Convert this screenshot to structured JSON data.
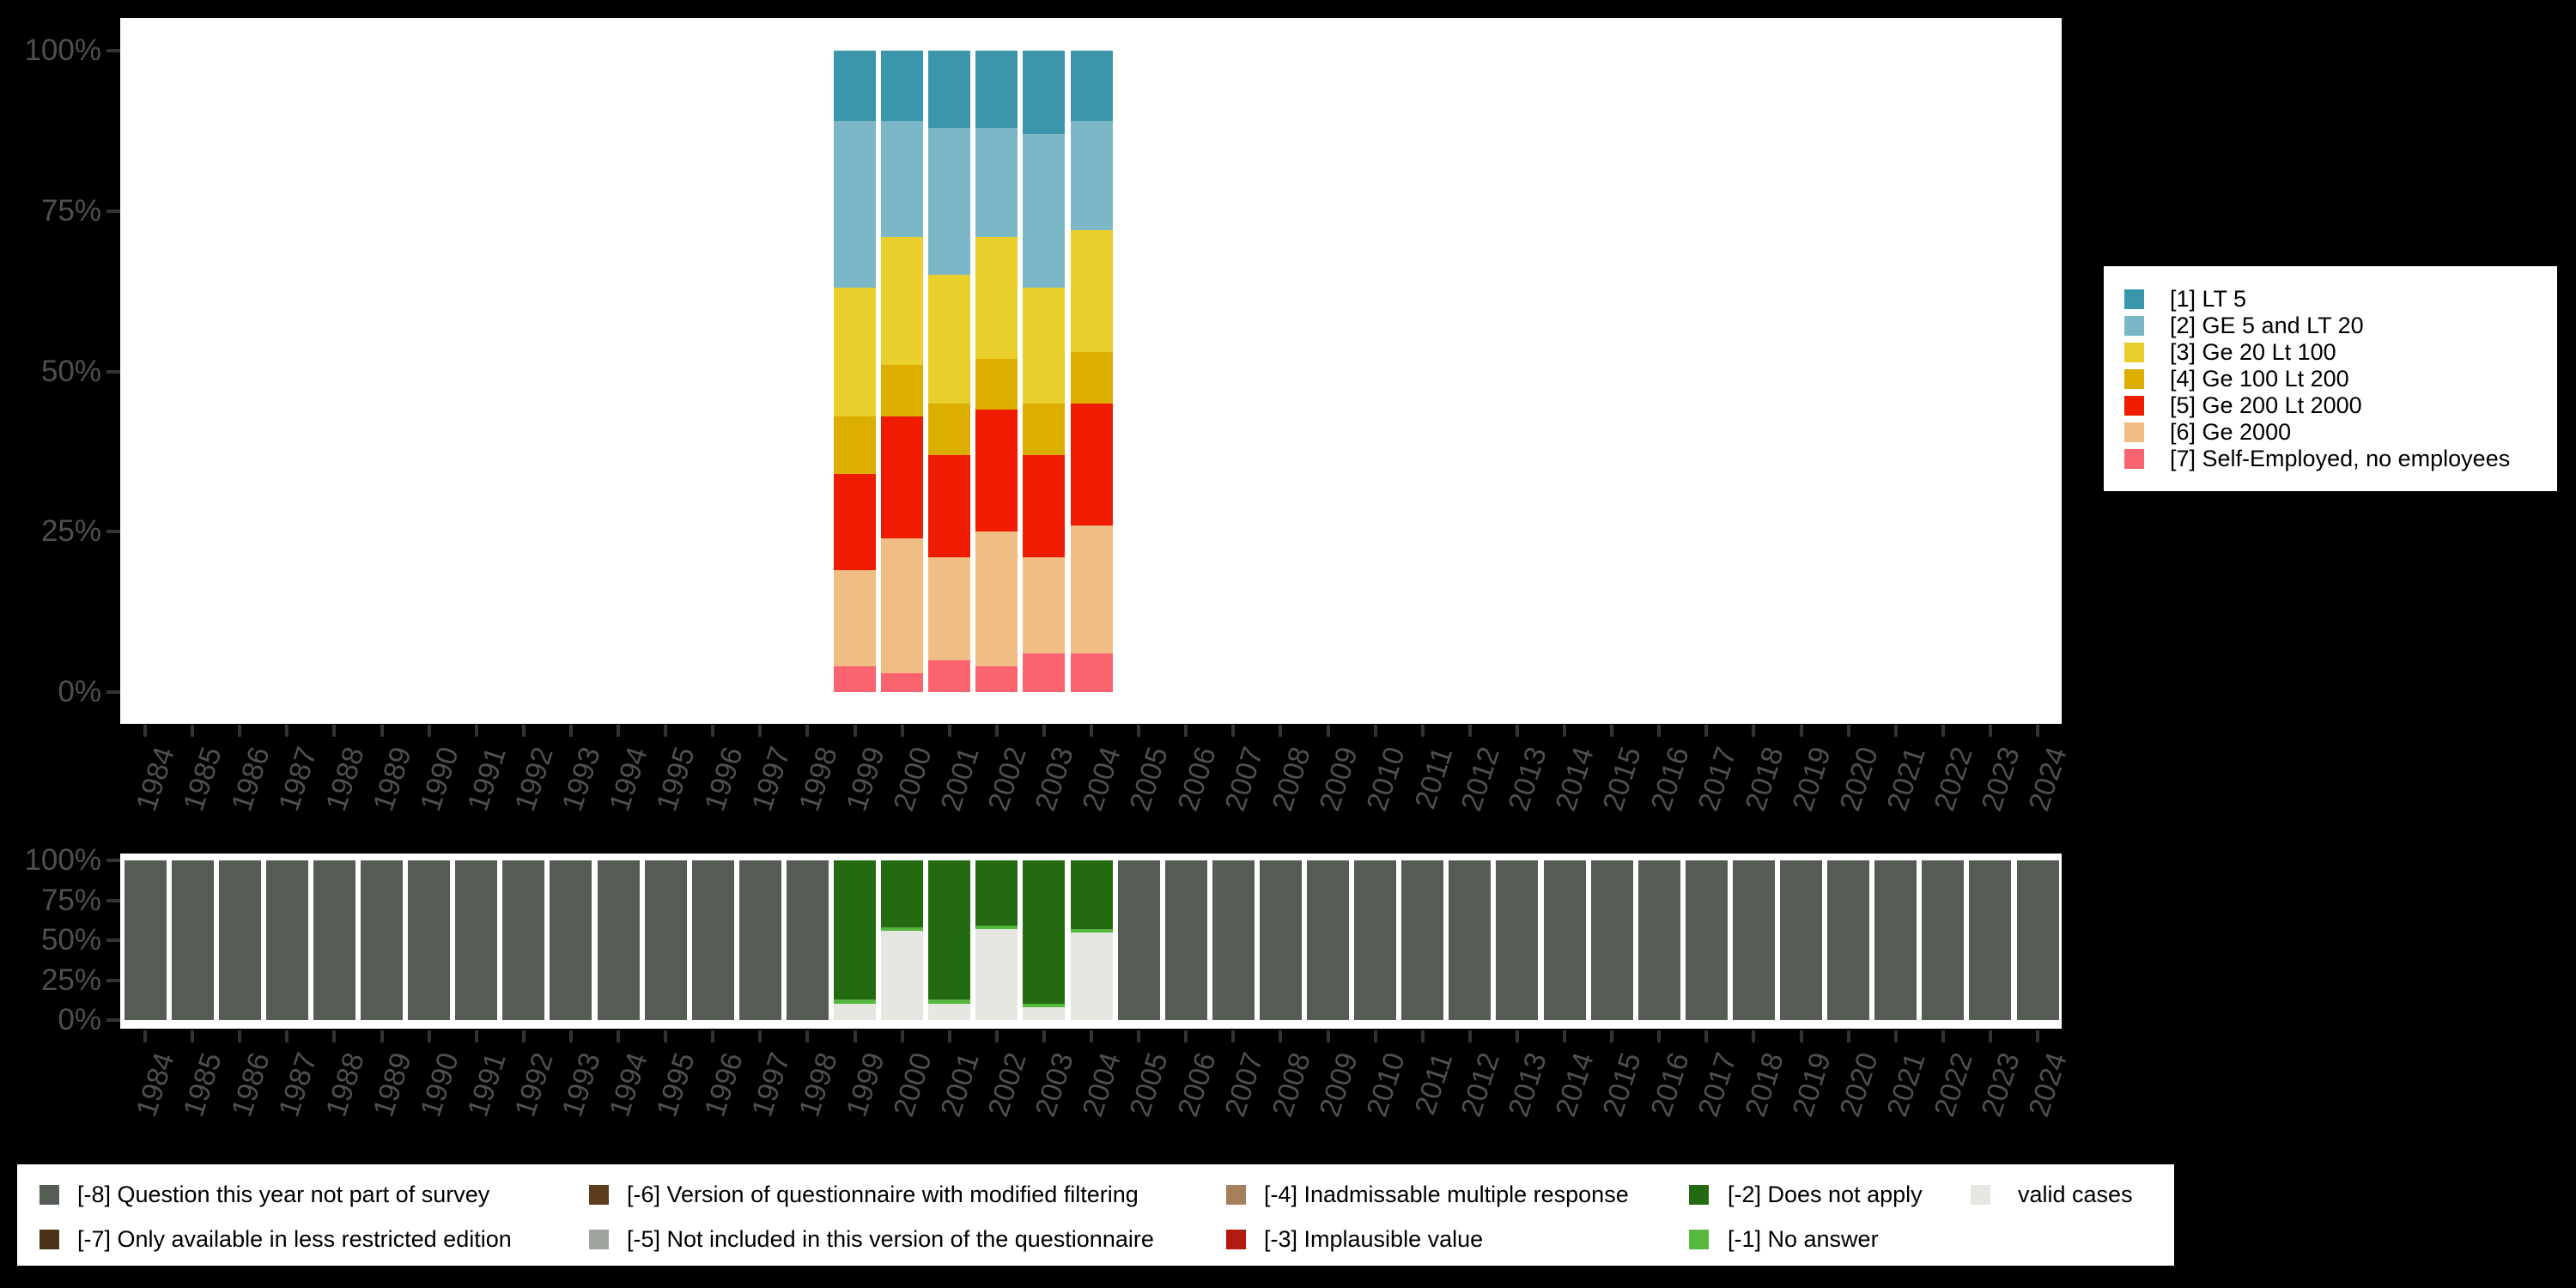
{
  "page": {
    "background": "#000000",
    "plot_background": "#ffffff",
    "axis_text_color": "#4f4f4f",
    "axis_tick_color": "#333333"
  },
  "chart_data": [
    {
      "id": "company-size-distribution",
      "type": "bar",
      "stacked": true,
      "orientation": "vertical",
      "grid": false,
      "title": "",
      "xlabel": "",
      "ylabel": "",
      "y_range": [
        0,
        100
      ],
      "y_ticks": [
        "0%",
        "25%",
        "50%",
        "75%",
        "100%"
      ],
      "legend_position": "right",
      "x": [
        "1984",
        "1985",
        "1986",
        "1987",
        "1988",
        "1989",
        "1990",
        "1991",
        "1992",
        "1993",
        "1994",
        "1995",
        "1996",
        "1997",
        "1998",
        "1999",
        "2000",
        "2001",
        "2002",
        "2003",
        "2004",
        "2005",
        "2006",
        "2007",
        "2008",
        "2009",
        "2010",
        "2011",
        "2012",
        "2013",
        "2014",
        "2015",
        "2016",
        "2017",
        "2018",
        "2019",
        "2020",
        "2021",
        "2022",
        "2023",
        "2024"
      ],
      "series": [
        {
          "name": "[1] LT 5",
          "color": "#3b96ac",
          "values": {
            "1999": 11,
            "2000": 11,
            "2001": 12,
            "2002": 12,
            "2003": 13,
            "2004": 11
          }
        },
        {
          "name": "[2] GE 5 and LT 20",
          "color": "#7cb7c8",
          "values": {
            "1999": 26,
            "2000": 18,
            "2001": 23,
            "2002": 17,
            "2003": 24,
            "2004": 17
          }
        },
        {
          "name": "[3] Ge 20 Lt 100",
          "color": "#e9cf2b",
          "values": {
            "1999": 20,
            "2000": 20,
            "2001": 20,
            "2002": 19,
            "2003": 18,
            "2004": 19
          }
        },
        {
          "name": "[4] Ge 100 Lt 200",
          "color": "#dbae00",
          "values": {
            "1999": 9,
            "2000": 8,
            "2001": 8,
            "2002": 8,
            "2003": 8,
            "2004": 8
          }
        },
        {
          "name": "[5] Ge 200 Lt 2000",
          "color": "#ef1c02",
          "values": {
            "1999": 15,
            "2000": 19,
            "2001": 16,
            "2002": 19,
            "2003": 16,
            "2004": 19
          }
        },
        {
          "name": "[6] Ge 2000",
          "color": "#f0bd85",
          "values": {
            "1999": 15,
            "2000": 21,
            "2001": 16,
            "2002": 21,
            "2003": 15,
            "2004": 20
          }
        },
        {
          "name": "[7] Self-Employed, no employees",
          "color": "#fa646e",
          "values": {
            "1999": 4,
            "2000": 3,
            "2001": 5,
            "2002": 4,
            "2003": 6,
            "2004": 6
          }
        }
      ]
    },
    {
      "id": "missing-values-overview",
      "type": "bar",
      "stacked": true,
      "orientation": "vertical",
      "grid": false,
      "title": "",
      "xlabel": "",
      "ylabel": "",
      "y_range": [
        0,
        100
      ],
      "y_ticks": [
        "0%",
        "25%",
        "50%",
        "75%",
        "100%"
      ],
      "legend_position": "bottom",
      "x": [
        "1984",
        "1985",
        "1986",
        "1987",
        "1988",
        "1989",
        "1990",
        "1991",
        "1992",
        "1993",
        "1994",
        "1995",
        "1996",
        "1997",
        "1998",
        "1999",
        "2000",
        "2001",
        "2002",
        "2003",
        "2004",
        "2005",
        "2006",
        "2007",
        "2008",
        "2009",
        "2010",
        "2011",
        "2012",
        "2013",
        "2014",
        "2015",
        "2016",
        "2017",
        "2018",
        "2019",
        "2020",
        "2021",
        "2022",
        "2023",
        "2024"
      ],
      "series": [
        {
          "name": "[-2] Does not apply",
          "color": "#236a10",
          "values": {
            "1999": 87,
            "2000": 42,
            "2001": 87,
            "2002": 41,
            "2003": 90,
            "2004": 43
          }
        },
        {
          "name": "[-1] No answer",
          "color": "#56b83e",
          "values": {
            "1999": 3,
            "2000": 2,
            "2001": 3,
            "2002": 2,
            "2003": 2,
            "2004": 2
          }
        },
        {
          "name": "valid cases",
          "color": "#e4e8e0",
          "values": {
            "1999": 10,
            "2000": 56,
            "2001": 10,
            "2002": 57,
            "2003": 8,
            "2004": 55
          }
        },
        {
          "name": "[-8] Question this year not part of survey",
          "color": "#545c54",
          "values": {
            "1984": 100,
            "1985": 100,
            "1986": 100,
            "1987": 100,
            "1988": 100,
            "1989": 100,
            "1990": 100,
            "1991": 100,
            "1992": 100,
            "1993": 100,
            "1994": 100,
            "1995": 100,
            "1996": 100,
            "1997": 100,
            "1998": 100,
            "2005": 100,
            "2006": 100,
            "2007": 100,
            "2008": 100,
            "2009": 100,
            "2010": 100,
            "2011": 100,
            "2012": 100,
            "2013": 100,
            "2014": 100,
            "2015": 100,
            "2016": 100,
            "2017": 100,
            "2018": 100,
            "2019": 100,
            "2020": 100,
            "2021": 100,
            "2022": 100,
            "2023": 100,
            "2024": 100
          }
        }
      ]
    }
  ],
  "legend_top": {
    "items": [
      {
        "label": "[1] LT 5",
        "color": "#3b96ac"
      },
      {
        "label": "[2] GE 5 and LT 20",
        "color": "#7cb7c8"
      },
      {
        "label": "[3] Ge 20 Lt 100",
        "color": "#e9cf2b"
      },
      {
        "label": "[4] Ge 100 Lt 200",
        "color": "#dbae00"
      },
      {
        "label": "[5] Ge 200 Lt 2000",
        "color": "#ef1c02"
      },
      {
        "label": "[6] Ge 2000",
        "color": "#f0bd85"
      },
      {
        "label": "[7] Self-Employed, no employees",
        "color": "#fa646e"
      }
    ]
  },
  "legend_bottom": {
    "items": [
      {
        "label": "[-8] Question this year not part of survey",
        "color": "#545c54",
        "row": 0,
        "col": 0
      },
      {
        "label": "[-7] Only available in less restricted edition",
        "color": "#4a3117",
        "row": 1,
        "col": 0
      },
      {
        "label": "[-6] Version of questionnaire with modified filtering",
        "color": "#5e3b1c",
        "row": 0,
        "col": 1
      },
      {
        "label": "[-5] Not included in this version of the questionnaire",
        "color": "#9da59d",
        "row": 1,
        "col": 1
      },
      {
        "label": "[-4] Inadmissable multiple response",
        "color": "#a5805a",
        "row": 0,
        "col": 2
      },
      {
        "label": "[-3] Implausible value",
        "color": "#b21b10",
        "row": 1,
        "col": 2
      },
      {
        "label": "[-2] Does not apply",
        "color": "#236a10",
        "row": 0,
        "col": 3
      },
      {
        "label": "[-1] No answer",
        "color": "#56b83e",
        "row": 1,
        "col": 3
      },
      {
        "label": "valid cases",
        "color": "#e4e8e0",
        "row": 0,
        "col": 4
      }
    ]
  }
}
